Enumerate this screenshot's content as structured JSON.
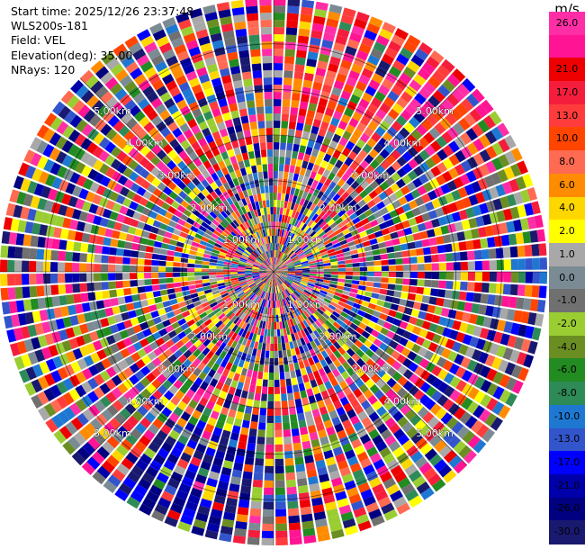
{
  "info": {
    "start_time": "Start time: 2025/12/26 23:37:48",
    "instrument": "WLS200s-181",
    "field": "Field: VEL",
    "elevation": "Elevation(deg): 35.00",
    "nrays": "NRays: 120"
  },
  "colorbar": {
    "unit": "m/s",
    "bins": [
      {
        "color": "#ff2ea6",
        "label": "26.0"
      },
      {
        "color": "#ff1493",
        "label": ""
      },
      {
        "color": "#ee0000",
        "label": "21.0"
      },
      {
        "color": "#f51d3c",
        "label": "17.0"
      },
      {
        "color": "#ff3c3c",
        "label": "13.0"
      },
      {
        "color": "#ff4500",
        "label": "10.0"
      },
      {
        "color": "#ff6a52",
        "label": "8.0"
      },
      {
        "color": "#ff8c00",
        "label": "6.0"
      },
      {
        "color": "#ffd700",
        "label": "4.0"
      },
      {
        "color": "#ffff00",
        "label": "2.0"
      },
      {
        "color": "#a8a8a8",
        "label": "1.0"
      },
      {
        "color": "#7b8b94",
        "label": "0.0"
      },
      {
        "color": "#707070",
        "label": "-1.0"
      },
      {
        "color": "#9acd32",
        "label": "-2.0"
      },
      {
        "color": "#6b8e23",
        "label": "-4.0"
      },
      {
        "color": "#228b22",
        "label": "-6.0"
      },
      {
        "color": "#2e8b57",
        "label": "-8.0"
      },
      {
        "color": "#1e78d2",
        "label": "-10.0"
      },
      {
        "color": "#3355cc",
        "label": "-13.0"
      },
      {
        "color": "#0000ff",
        "label": "-17.0"
      },
      {
        "color": "#0000aa",
        "label": "-21.0"
      },
      {
        "color": "#000080",
        "label": "-26.0"
      },
      {
        "color": "#191970",
        "label": "-30.0"
      }
    ]
  },
  "range_rings": {
    "labels": [
      "1.00km",
      "2.00km",
      "3.00km",
      "4.00km",
      "5.00km"
    ],
    "max_range_km": 6.0
  },
  "chart_data": {
    "type": "heatmap",
    "projection": "polar",
    "field": "VEL",
    "units": "m/s",
    "nrays": 120,
    "elevation_deg": 35.0,
    "instrument": "WLS200s-181",
    "start_time": "2025/12/26 23:37:48",
    "range_rings_km": [
      1,
      2,
      3,
      4,
      5
    ],
    "vlim": [
      -30,
      30
    ]
  }
}
